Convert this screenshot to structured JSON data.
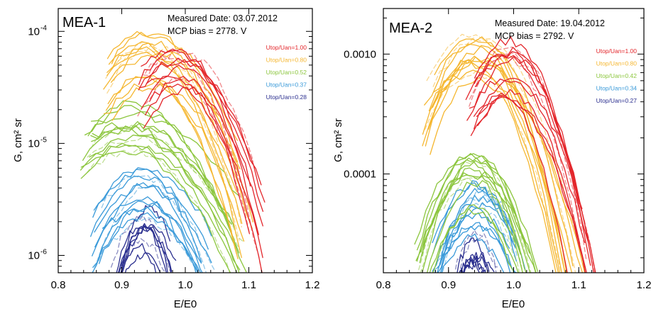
{
  "chart_data": [
    {
      "type": "line",
      "panel_label": "MEA-1",
      "info": [
        "Measured Date: 03.07.2012",
        "MCP bias = 2778. V"
      ],
      "xlabel": "E/E0",
      "ylabel": "G, cm² sr",
      "yscale": "log",
      "xlim": [
        0.8,
        1.2
      ],
      "ylim": [
        7e-07,
        0.00016
      ],
      "x_ticks": [
        {
          "value": 0.8,
          "label": "0.8"
        },
        {
          "value": 0.9,
          "label": "0.9"
        },
        {
          "value": 1.0,
          "label": "1.0"
        },
        {
          "value": 1.1,
          "label": "1.1"
        },
        {
          "value": 1.2,
          "label": "1.2"
        }
      ],
      "y_ticks": [
        {
          "value": 1e-06,
          "label": "10",
          "exp": "-6"
        },
        {
          "value": 1e-05,
          "label": "10",
          "exp": "-5"
        },
        {
          "value": 0.0001,
          "label": "10",
          "exp": "-4"
        }
      ],
      "legend_position": "top-right",
      "series": [
        {
          "name": "Utop/Uan=1.00",
          "color": "#e3262b",
          "center": 0.985,
          "peak": 6.5e-05,
          "sigma": 0.052,
          "xmin": 0.925,
          "xmax": 1.125,
          "count": 12
        },
        {
          "name": "Utop/Uan=0.80",
          "color": "#f5b731",
          "center": 0.943,
          "peak": 8.8e-05,
          "sigma": 0.06,
          "xmin": 0.87,
          "xmax": 1.11,
          "count": 14
        },
        {
          "name": "Utop/Uan=0.52",
          "color": "#8cc63e",
          "center": 0.915,
          "peak": 2.1e-05,
          "sigma": 0.08,
          "xmin": 0.835,
          "xmax": 1.1,
          "count": 14
        },
        {
          "name": "Utop/Uan=0.37",
          "color": "#3a9ad9",
          "center": 0.935,
          "peak": 5.4e-06,
          "sigma": 0.055,
          "xmin": 0.85,
          "xmax": 1.05,
          "count": 13
        },
        {
          "name": "Utop/Uan=0.28",
          "color": "#2b2f8f",
          "center": 0.935,
          "peak": 2.6e-06,
          "sigma": 0.03,
          "xmin": 0.88,
          "xmax": 1.0,
          "count": 10
        }
      ]
    },
    {
      "type": "line",
      "panel_label": "MEA-2",
      "info": [
        "Measured Date: 19.04.2012",
        "MCP bias = 2792. V"
      ],
      "xlabel": "E/E0",
      "ylabel": "G, cm² sr",
      "yscale": "log",
      "xlim": [
        0.8,
        1.2
      ],
      "ylim": [
        1.5e-05,
        0.0024
      ],
      "x_ticks": [
        {
          "value": 0.8,
          "label": "0.8"
        },
        {
          "value": 0.9,
          "label": "0.9"
        },
        {
          "value": 1.0,
          "label": "1.0"
        },
        {
          "value": 1.1,
          "label": "1.1"
        },
        {
          "value": 1.2,
          "label": "1.2"
        }
      ],
      "y_ticks": [
        {
          "value": 0.0001,
          "label": "0.0001"
        },
        {
          "value": 0.001,
          "label": "0.0010"
        }
      ],
      "legend_position": "top-right",
      "series": [
        {
          "name": "Utop/Uan=1.00",
          "color": "#e3262b",
          "center": 0.99,
          "peak": 0.0012,
          "sigma": 0.045,
          "xmin": 0.925,
          "xmax": 1.13,
          "count": 14
        },
        {
          "name": "Utop/Uan=0.80",
          "color": "#f5b731",
          "center": 0.94,
          "peak": 0.00155,
          "sigma": 0.05,
          "xmin": 0.86,
          "xmax": 1.11,
          "count": 14
        },
        {
          "name": "Utop/Uan=0.42",
          "color": "#8cc63e",
          "center": 0.94,
          "peak": 0.00014,
          "sigma": 0.045,
          "xmin": 0.845,
          "xmax": 1.04,
          "count": 14
        },
        {
          "name": "Utop/Uan=0.34",
          "color": "#3a9ad9",
          "center": 0.945,
          "peak": 7.5e-05,
          "sigma": 0.04,
          "xmin": 0.87,
          "xmax": 1.02,
          "count": 13
        },
        {
          "name": "Utop/Uan=0.27",
          "color": "#2b2f8f",
          "center": 0.94,
          "peak": 3.2e-05,
          "sigma": 0.025,
          "xmin": 0.9,
          "xmax": 0.985,
          "count": 10
        }
      ]
    }
  ]
}
